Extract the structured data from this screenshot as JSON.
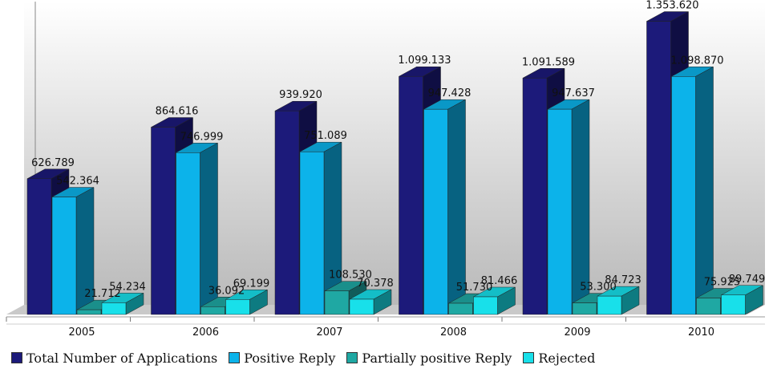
{
  "chart_data": {
    "type": "bar",
    "categories": [
      "2005",
      "2006",
      "2007",
      "2008",
      "2009",
      "2010"
    ],
    "series": [
      {
        "name": "Total Number of Applications",
        "values": [
          626789,
          864616,
          939920,
          1099133,
          1091589,
          1353620
        ],
        "labels": [
          "626.789",
          "864.616",
          "939.920",
          "1.099.133",
          "1.091.589",
          "1.353.620"
        ]
      },
      {
        "name": "Positive Reply",
        "values": [
          542364,
          746999,
          751089,
          947428,
          947637,
          1098870
        ],
        "labels": [
          "542.364",
          "746.999",
          "751.089",
          "947.428",
          "947.637",
          "1.098.870"
        ]
      },
      {
        "name": "Partially positive Reply",
        "values": [
          21712,
          36092,
          108530,
          51730,
          53300,
          75925
        ],
        "labels": [
          "21.712",
          "36.092",
          "108.530",
          "51.730",
          "53.300",
          "75.925"
        ]
      },
      {
        "name": "Rejected",
        "values": [
          54234,
          69199,
          70378,
          81466,
          84723,
          89749
        ],
        "labels": [
          "54.234",
          "69.199",
          "70.378",
          "81.466",
          "84.723",
          "89.749"
        ]
      }
    ],
    "colors": {
      "Total Number of Applications": "#1c1a7a",
      "Positive Reply": "#0cb3ea",
      "Partially positive Reply": "#1fa8a3",
      "Rejected": "#18e0ea"
    },
    "legend_position": "bottom",
    "grid": false,
    "three_d": true,
    "title": "",
    "xlabel": "",
    "ylabel": ""
  }
}
